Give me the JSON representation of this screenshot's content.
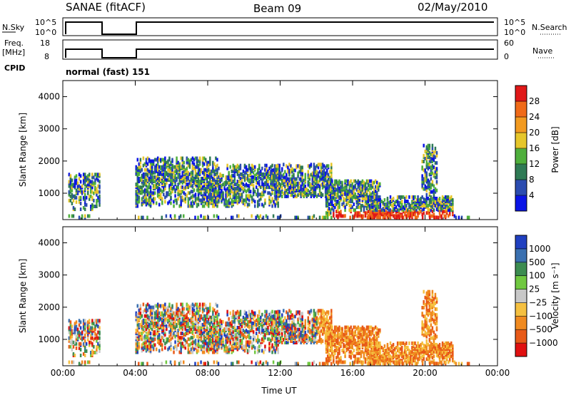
{
  "header": {
    "site": "SANAE (fitACF)",
    "beam": "Beam 09",
    "date": "02/May/2010"
  },
  "top_panels": {
    "nsky_label": "N.Sky",
    "nsky_ticks": [
      "10^5",
      "10^0"
    ],
    "nsearch_label": "N.Search",
    "nsearch_ticks": [
      "10^5",
      "10^0"
    ],
    "freq_label_1": "Freq.",
    "freq_label_2": "[MHz]",
    "freq_ticks": [
      "18",
      "8"
    ],
    "nave_label": "Nave",
    "nave_ticks": [
      "60",
      "0"
    ],
    "cpid_label": "CPID",
    "cpid_value": "normal (fast) 151"
  },
  "chart_data": [
    {
      "type": "heatmap",
      "name": "power",
      "ylabel": "Slant Range [km]",
      "ylim": [
        180,
        4500
      ],
      "yticks": [
        "1000",
        "2000",
        "3000",
        "4000"
      ],
      "xlim_hours": [
        0,
        24
      ],
      "xticks": [
        "00:00",
        "04:00",
        "08:00",
        "12:00",
        "16:00",
        "20:00",
        "00:00"
      ],
      "data_gaps_hours": [
        [
          2.0,
          4.0
        ]
      ],
      "colorbar": {
        "label": "Power [dB]",
        "ticks": [
          "4",
          "8",
          "12",
          "16",
          "20",
          "24",
          "28"
        ],
        "colors": [
          "#0a14e6",
          "#2b4cb0",
          "#2f7a55",
          "#4faf3c",
          "#e6c62a",
          "#f29a20",
          "#f06a18",
          "#e01818"
        ]
      }
    },
    {
      "type": "heatmap",
      "name": "velocity",
      "ylabel": "Slant Range [km]",
      "ylim": [
        180,
        4500
      ],
      "yticks": [
        "1000",
        "2000",
        "3000",
        "4000"
      ],
      "xlim_hours": [
        0,
        24
      ],
      "xticks": [
        "00:00",
        "04:00",
        "08:00",
        "12:00",
        "16:00",
        "20:00",
        "00:00"
      ],
      "xlabel": "Time UT",
      "data_gaps_hours": [
        [
          2.0,
          4.0
        ]
      ],
      "colorbar": {
        "label": "Velocity [m s⁻¹]",
        "ticks": [
          "1000",
          "500",
          "100",
          "25",
          "−25",
          "−100",
          "−500",
          "−1000"
        ],
        "colors": [
          "#2040c0",
          "#3a70b0",
          "#3c8c50",
          "#70c840",
          "#c8c8c8",
          "#f5c040",
          "#f08a20",
          "#e85a18",
          "#e01010"
        ]
      }
    }
  ]
}
